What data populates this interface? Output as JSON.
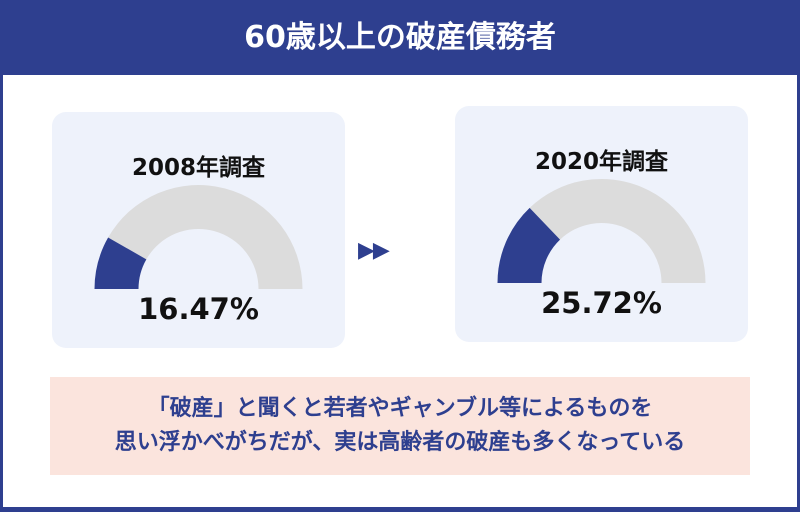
{
  "title": "60歳以上の破産債務者",
  "chart_data": [
    {
      "type": "gauge",
      "label": "2008年調査",
      "value": 16.47,
      "value_label": "16.47%",
      "range": [
        0,
        100
      ]
    },
    {
      "type": "gauge",
      "label": "2020年調査",
      "value": 25.72,
      "value_label": "25.72%",
      "range": [
        0,
        100
      ]
    }
  ],
  "colors": {
    "fill": "#2e3f8f",
    "track": "#dcdcdc"
  },
  "arrow_icon": "double-triangle-right",
  "note": {
    "line1": "「破産」と聞くと若者やギャンブル等によるものを",
    "line2": "思い浮かべがちだが、実は高齢者の破産も多くなっている"
  }
}
